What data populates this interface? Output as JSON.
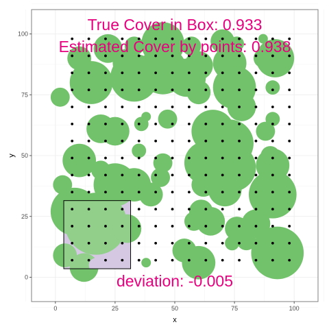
{
  "chart_data": {
    "type": "scatter",
    "xlabel": "x",
    "ylabel": "y",
    "xlim": [
      -10,
      110
    ],
    "ylim": [
      -10,
      110
    ],
    "x_ticks": [
      0,
      25,
      50,
      75,
      100
    ],
    "y_ticks": [
      0,
      25,
      50,
      75,
      100
    ],
    "grid": true,
    "colors": {
      "cover": "#72c26b",
      "points": "#000000",
      "box_fill": "#c8b9dc",
      "annotation": "#e6007e",
      "panel_border": "#7f7f7f"
    },
    "annotations": {
      "true_cover": "True Cover in Box: 0.933",
      "estimated_cover": "Estimated Cover by points: 0.938",
      "deviation": "deviation: -0.005"
    },
    "box": {
      "x0": 3.5,
      "x1": 31.5,
      "y0": 3.5,
      "y1": 31.5
    },
    "point_grid": {
      "x_start": 7,
      "x_step": 7,
      "x_count": 14,
      "y_start": 7,
      "y_step": 7,
      "y_count": 14
    },
    "circles": [
      {
        "x": 22,
        "y": 94,
        "r": 6
      },
      {
        "x": 33,
        "y": 95,
        "r": 4
      },
      {
        "x": 45,
        "y": 96,
        "r": 9
      },
      {
        "x": 57,
        "y": 95,
        "r": 4
      },
      {
        "x": 70,
        "y": 97,
        "r": 5
      },
      {
        "x": 76,
        "y": 96,
        "r": 3
      },
      {
        "x": 87,
        "y": 98,
        "r": 2
      },
      {
        "x": 10,
        "y": 90,
        "r": 5
      },
      {
        "x": 30,
        "y": 88,
        "r": 6
      },
      {
        "x": 45,
        "y": 85,
        "r": 10
      },
      {
        "x": 60,
        "y": 87,
        "r": 6
      },
      {
        "x": 73,
        "y": 88,
        "r": 7
      },
      {
        "x": 92,
        "y": 90,
        "r": 8
      },
      {
        "x": 87,
        "y": 90,
        "r": 4
      },
      {
        "x": 15,
        "y": 80,
        "r": 9
      },
      {
        "x": 33,
        "y": 82,
        "r": 10
      },
      {
        "x": 55,
        "y": 82,
        "r": 8
      },
      {
        "x": 75,
        "y": 78,
        "r": 9
      },
      {
        "x": 91,
        "y": 78,
        "r": 3
      },
      {
        "x": 2,
        "y": 74,
        "r": 4
      },
      {
        "x": 60,
        "y": 76,
        "r": 5
      },
      {
        "x": 78,
        "y": 70,
        "r": 6
      },
      {
        "x": 38,
        "y": 66,
        "r": 2
      },
      {
        "x": 47,
        "y": 65,
        "r": 4
      },
      {
        "x": 36,
        "y": 63,
        "r": 3
      },
      {
        "x": 25,
        "y": 60,
        "r": 6
      },
      {
        "x": 19,
        "y": 61,
        "r": 6
      },
      {
        "x": 66,
        "y": 60,
        "r": 9
      },
      {
        "x": 73,
        "y": 55,
        "r": 10
      },
      {
        "x": 88,
        "y": 60,
        "r": 4
      },
      {
        "x": 91,
        "y": 65,
        "r": 3
      },
      {
        "x": 35,
        "y": 52,
        "r": 3
      },
      {
        "x": 10,
        "y": 48,
        "r": 7
      },
      {
        "x": 19,
        "y": 44,
        "r": 4
      },
      {
        "x": 25,
        "y": 38,
        "r": 9
      },
      {
        "x": 45,
        "y": 47,
        "r": 4
      },
      {
        "x": 63,
        "y": 47,
        "r": 9
      },
      {
        "x": 74,
        "y": 45,
        "r": 10
      },
      {
        "x": 91,
        "y": 46,
        "r": 7
      },
      {
        "x": 90,
        "y": 50,
        "r": 4
      },
      {
        "x": 3,
        "y": 38,
        "r": 4
      },
      {
        "x": 33,
        "y": 38,
        "r": 7
      },
      {
        "x": 40,
        "y": 34,
        "r": 5
      },
      {
        "x": 44,
        "y": 41,
        "r": 4
      },
      {
        "x": 62,
        "y": 38,
        "r": 5
      },
      {
        "x": 71,
        "y": 36,
        "r": 7
      },
      {
        "x": 91,
        "y": 34,
        "r": 10
      },
      {
        "x": 8,
        "y": 27,
        "r": 10
      },
      {
        "x": 17,
        "y": 22,
        "r": 13
      },
      {
        "x": 30,
        "y": 20,
        "r": 6
      },
      {
        "x": 61,
        "y": 27,
        "r": 5
      },
      {
        "x": 65,
        "y": 23,
        "r": 6
      },
      {
        "x": 76,
        "y": 20,
        "r": 5
      },
      {
        "x": 84,
        "y": 22,
        "r": 6
      },
      {
        "x": 58,
        "y": 23,
        "r": 4
      },
      {
        "x": 4,
        "y": 9,
        "r": 5
      },
      {
        "x": 12,
        "y": 4,
        "r": 6
      },
      {
        "x": 54,
        "y": 11,
        "r": 5
      },
      {
        "x": 60,
        "y": 6,
        "r": 7
      },
      {
        "x": 80,
        "y": 15,
        "r": 4
      },
      {
        "x": 93,
        "y": 10,
        "r": 11
      },
      {
        "x": 74,
        "y": 14,
        "r": 3
      },
      {
        "x": 38,
        "y": 6,
        "r": 2
      }
    ],
    "uncovered_patches": [
      {
        "x": 17,
        "y": 5,
        "r": 3
      },
      {
        "x": 20,
        "y": 4,
        "r": 2
      }
    ]
  }
}
